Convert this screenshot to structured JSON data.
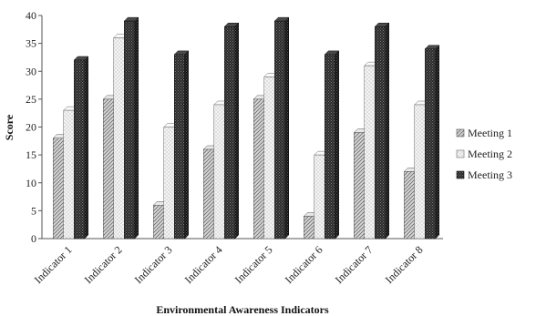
{
  "chart_data": {
    "type": "bar",
    "style": "3d-clustered",
    "categories": [
      "Indicator 1",
      "Indicator 2",
      "Indicator 3",
      "Indicator 4",
      "Indicator 5",
      "Indicator 6",
      "Indicator 7",
      "Indicator 8"
    ],
    "series": [
      {
        "name": "Meeting 1",
        "values": [
          18,
          25,
          6,
          16,
          25,
          4,
          19,
          12
        ],
        "pattern": "diagonal-hatch",
        "color": "#c8c8c8"
      },
      {
        "name": "Meeting 2",
        "values": [
          23,
          36,
          20,
          24,
          29,
          15,
          31,
          24
        ],
        "pattern": "speckle",
        "color": "#eeeeee"
      },
      {
        "name": "Meeting 3",
        "values": [
          32,
          39,
          33,
          38,
          39,
          33,
          38,
          34
        ],
        "pattern": "dark-checker",
        "color": "#333333"
      }
    ],
    "xlabel": "Environmental Awareness Indicators",
    "ylabel": "Score",
    "ylim": [
      0,
      40
    ],
    "yticks": [
      "0",
      "5",
      "10",
      "15",
      "20",
      "25",
      "30",
      "35",
      "40"
    ],
    "grid": false,
    "legend_position": "right"
  }
}
